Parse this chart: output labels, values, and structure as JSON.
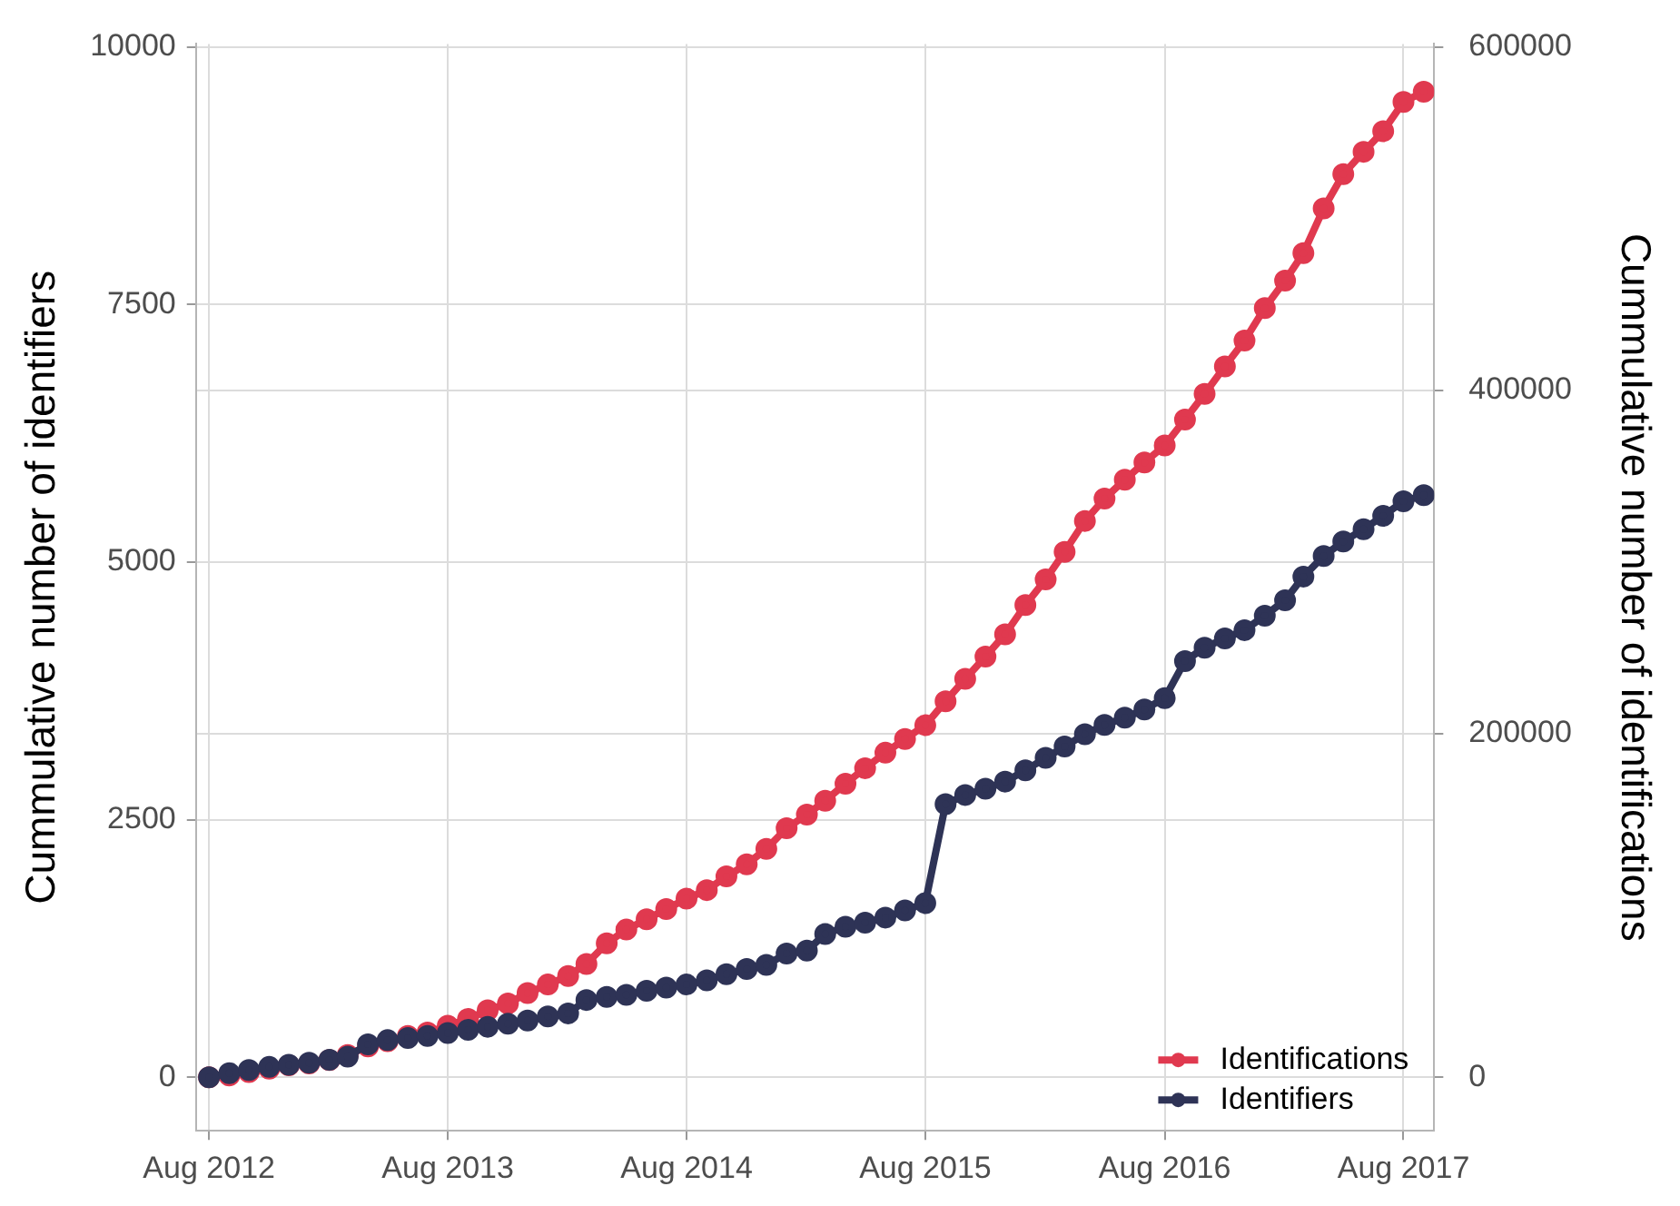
{
  "chart_data": {
    "type": "line",
    "ylabel": "Cummulative number of identifiers",
    "y2label": "Cummulative number of identifications",
    "x": [
      "2012-08",
      "2012-09",
      "2012-10",
      "2012-11",
      "2012-12",
      "2013-01",
      "2013-02",
      "2013-03",
      "2013-04",
      "2013-05",
      "2013-06",
      "2013-07",
      "2013-08",
      "2013-09",
      "2013-10",
      "2013-11",
      "2013-12",
      "2014-01",
      "2014-02",
      "2014-03",
      "2014-04",
      "2014-05",
      "2014-06",
      "2014-07",
      "2014-08",
      "2014-09",
      "2014-10",
      "2014-11",
      "2014-12",
      "2015-01",
      "2015-02",
      "2015-03",
      "2015-04",
      "2015-05",
      "2015-06",
      "2015-07",
      "2015-08",
      "2015-09",
      "2015-10",
      "2015-11",
      "2015-12",
      "2016-01",
      "2016-02",
      "2016-03",
      "2016-04",
      "2016-05",
      "2016-06",
      "2016-07",
      "2016-08",
      "2016-09",
      "2016-10",
      "2016-11",
      "2016-12",
      "2017-01",
      "2017-02",
      "2017-03",
      "2017-04",
      "2017-05",
      "2017-06",
      "2017-07",
      "2017-08",
      "2017-09"
    ],
    "series": [
      {
        "name": "Identifications",
        "color": "#e0394f",
        "axis": "y2",
        "values": [
          0,
          1000,
          3000,
          5000,
          7000,
          8000,
          10000,
          13000,
          18000,
          21000,
          24000,
          26000,
          30000,
          34000,
          39000,
          43000,
          49000,
          54000,
          59000,
          66000,
          78000,
          86000,
          92000,
          98000,
          104000,
          109000,
          117000,
          124000,
          133000,
          145000,
          153000,
          161000,
          171000,
          180000,
          189000,
          197000,
          205000,
          219000,
          232000,
          245000,
          258000,
          275000,
          290000,
          306000,
          324000,
          337000,
          348000,
          358000,
          368000,
          383000,
          398000,
          414000,
          429000,
          448000,
          464000,
          480000,
          506000,
          526000,
          539000,
          551000,
          568000,
          574000
        ]
      },
      {
        "name": "Identifiers",
        "color": "#2e3356",
        "values": [
          0,
          40,
          70,
          100,
          120,
          140,
          170,
          200,
          320,
          360,
          380,
          400,
          430,
          460,
          490,
          520,
          550,
          590,
          620,
          750,
          780,
          800,
          840,
          870,
          900,
          940,
          1000,
          1050,
          1090,
          1200,
          1230,
          1390,
          1460,
          1500,
          1550,
          1620,
          1690,
          2650,
          2740,
          2800,
          2870,
          2980,
          3100,
          3210,
          3330,
          3420,
          3490,
          3570,
          3680,
          4040,
          4170,
          4260,
          4340,
          4480,
          4630,
          4860,
          5060,
          5200,
          5320,
          5450,
          5590,
          5650
        ]
      }
    ],
    "xlim": [
      "2012-07-12",
      "2017-09-17"
    ],
    "xticks": [
      {
        "value": "2012-08",
        "label": "Aug 2012"
      },
      {
        "value": "2013-08",
        "label": "Aug 2013"
      },
      {
        "value": "2014-08",
        "label": "Aug 2014"
      },
      {
        "value": "2015-08",
        "label": "Aug 2015"
      },
      {
        "value": "2016-08",
        "label": "Aug 2016"
      },
      {
        "value": "2017-08",
        "label": "Aug 2017"
      }
    ],
    "ylim": [
      -520,
      10030
    ],
    "yticks": [
      0,
      2500,
      5000,
      7500,
      10000
    ],
    "y2lim": [
      -31200,
      601800
    ],
    "y2ticks": [
      0,
      200000,
      400000,
      600000
    ],
    "grid": true,
    "legend": "bottom right",
    "marker": "circle",
    "line_style": "solid"
  }
}
